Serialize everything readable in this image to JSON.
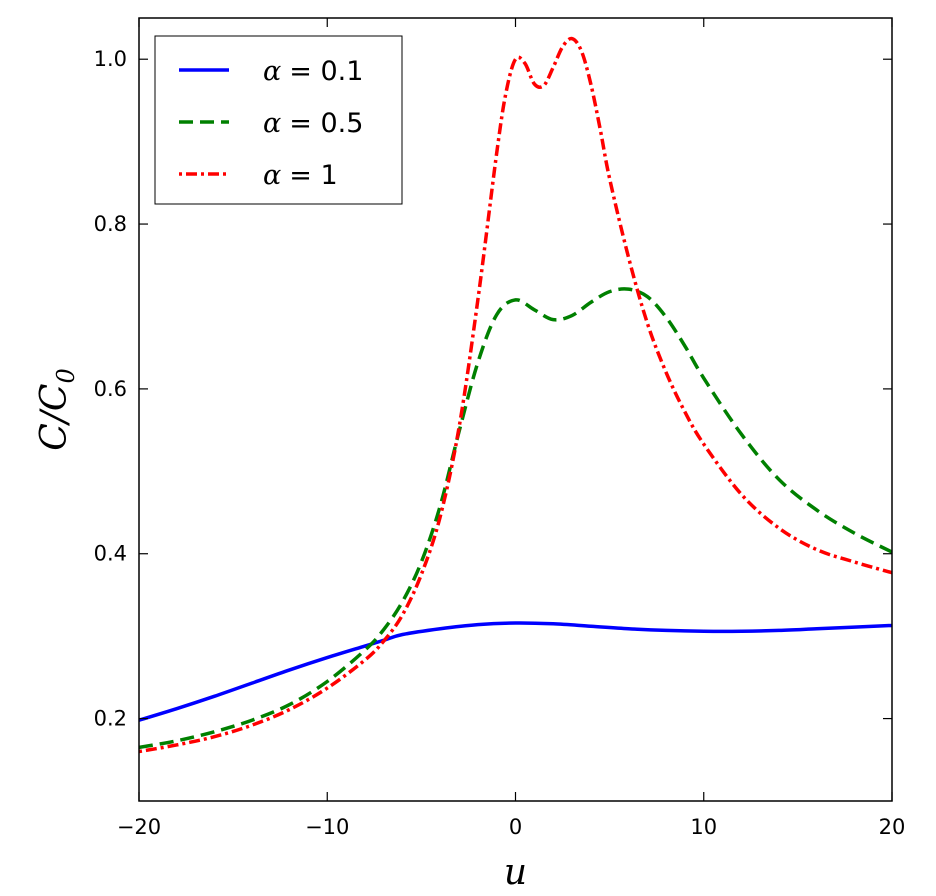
{
  "chart_data": {
    "type": "line",
    "title": "",
    "xlabel": "u",
    "ylabel": "C/C0",
    "ylabel_parts": {
      "main": "C/C",
      "sub": "0"
    },
    "xlim": [
      -20,
      20
    ],
    "ylim": [
      0.1,
      1.05
    ],
    "x_ticks": [
      -20,
      -10,
      0,
      10,
      20
    ],
    "x_tick_labels": [
      "−20",
      "−10",
      "0",
      "10",
      "20"
    ],
    "y_ticks": [
      0.2,
      0.4,
      0.6,
      0.8,
      1.0
    ],
    "y_tick_labels": [
      "0.2",
      "0.4",
      "0.6",
      "0.8",
      "1.0"
    ],
    "grid": false,
    "legend_position": "top-left",
    "series": [
      {
        "name": "α = 0.1",
        "legend_symbol": "α",
        "legend_value": "= 0.1",
        "color": "#0000ff",
        "style": "solid",
        "x": [
          -20,
          -18,
          -16,
          -14,
          -12,
          -10,
          -8,
          -7,
          -6,
          -4,
          -2,
          0,
          2,
          4,
          6,
          8,
          10,
          12,
          14,
          16,
          18,
          20
        ],
        "y": [
          0.198,
          0.212,
          0.227,
          0.243,
          0.259,
          0.274,
          0.288,
          0.295,
          0.302,
          0.309,
          0.314,
          0.316,
          0.315,
          0.312,
          0.309,
          0.307,
          0.306,
          0.306,
          0.307,
          0.309,
          0.311,
          0.313
        ]
      },
      {
        "name": "α = 0.5",
        "legend_symbol": "α",
        "legend_value": "= 0.5",
        "color": "#008000",
        "style": "dashed",
        "x": [
          -20,
          -18,
          -16,
          -14,
          -12,
          -10,
          -8,
          -7,
          -6,
          -5,
          -4,
          -3,
          -2,
          -1,
          0,
          1,
          2,
          3,
          4,
          5,
          6,
          7,
          8,
          9,
          10,
          12,
          14,
          16,
          18,
          20
        ],
        "y": [
          0.165,
          0.173,
          0.184,
          0.198,
          0.217,
          0.245,
          0.283,
          0.308,
          0.342,
          0.39,
          0.458,
          0.548,
          0.632,
          0.69,
          0.708,
          0.696,
          0.684,
          0.689,
          0.705,
          0.718,
          0.721,
          0.712,
          0.687,
          0.652,
          0.613,
          0.545,
          0.49,
          0.453,
          0.425,
          0.402
        ]
      },
      {
        "name": "α = 1",
        "legend_symbol": "α",
        "legend_value": "= 1",
        "color": "#ff0000",
        "style": "dashdot",
        "x": [
          -20,
          -18,
          -16,
          -14,
          -12,
          -10,
          -8,
          -7,
          -6,
          -5,
          -4,
          -3,
          -2,
          -1,
          -0.5,
          0,
          0.5,
          1,
          1.5,
          2,
          2.5,
          3,
          3.5,
          4,
          4.5,
          5,
          6,
          7,
          8,
          9,
          10,
          12,
          14,
          16,
          18,
          20
        ],
        "y": [
          0.16,
          0.168,
          0.178,
          0.192,
          0.211,
          0.237,
          0.271,
          0.294,
          0.326,
          0.375,
          0.445,
          0.553,
          0.708,
          0.886,
          0.96,
          1.0,
          0.995,
          0.97,
          0.968,
          0.99,
          1.015,
          1.025,
          1.01,
          0.97,
          0.915,
          0.855,
          0.76,
          0.68,
          0.62,
          0.572,
          0.533,
          0.472,
          0.431,
          0.405,
          0.39,
          0.377
        ]
      }
    ]
  }
}
